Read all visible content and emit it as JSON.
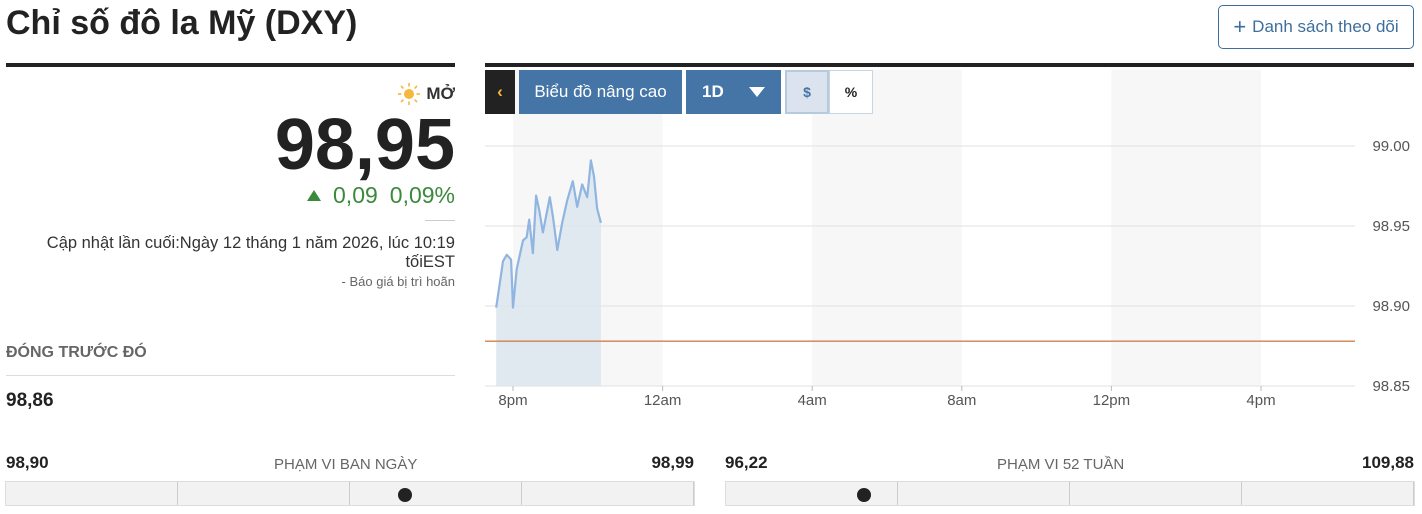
{
  "header": {
    "title": "Chỉ số đô la Mỹ (DXY)",
    "watchlist_label": "Danh sách theo dõi",
    "watchlist_icon": "plus-icon"
  },
  "quote": {
    "status": "MỞ",
    "status_icon": "sun-icon",
    "price": "98,95",
    "change": "0,09",
    "change_pct": "0,09%",
    "change_direction": "up",
    "updated": "Cập nhật lần cuối:Ngày 12 tháng 1 năm 2026, lúc 10:19 tốiEST",
    "delayed": "-  Báo giá bị trì hoãn",
    "prev_close_label": "ĐÓNG TRƯỚC ĐÓ",
    "prev_close": "98,86",
    "colors": {
      "up": "#3b8a3b",
      "accent": "#4475a6"
    }
  },
  "toolbar": {
    "back_icon": "chevron-left-icon",
    "advanced_label": "Biểu đồ nâng cao",
    "period": "1D",
    "usd_label": "$",
    "pct_label": "%",
    "selected": "$"
  },
  "chart_data": {
    "type": "area",
    "x_ticks": [
      "8pm",
      "12am",
      "4am",
      "8am",
      "12pm",
      "4pm"
    ],
    "y_ticks": [
      "99.00",
      "98.95",
      "98.90",
      "98.85"
    ],
    "ylim": [
      98.85,
      99.0
    ],
    "grid": true,
    "reference_line": 98.878,
    "colors": {
      "line": "#8fb5e0",
      "fill": "#dde5ee",
      "reference": "#d08050"
    },
    "points": [
      [
        "19:33",
        98.899
      ],
      [
        "19:44",
        98.928
      ],
      [
        "19:50",
        98.932
      ],
      [
        "19:57",
        98.929
      ],
      [
        "20:00",
        98.899
      ],
      [
        "20:06",
        98.923
      ],
      [
        "20:16",
        98.941
      ],
      [
        "20:22",
        98.943
      ],
      [
        "20:26",
        98.954
      ],
      [
        "20:32",
        98.933
      ],
      [
        "20:37",
        98.969
      ],
      [
        "20:42",
        98.96
      ],
      [
        "20:48",
        98.946
      ],
      [
        "20:55",
        98.96
      ],
      [
        "20:59",
        98.968
      ],
      [
        "21:04",
        98.956
      ],
      [
        "21:11",
        98.935
      ],
      [
        "21:19",
        98.952
      ],
      [
        "21:27",
        98.966
      ],
      [
        "21:36",
        98.978
      ],
      [
        "21:43",
        98.962
      ],
      [
        "21:51",
        98.976
      ],
      [
        "21:59",
        98.968
      ],
      [
        "22:05",
        98.991
      ],
      [
        "22:10",
        98.981
      ],
      [
        "22:15",
        98.961
      ],
      [
        "22:21",
        98.952
      ]
    ]
  },
  "ranges": {
    "day": {
      "label": "PHẠM VI BAN NGÀY",
      "low": "98,90",
      "high": "98,99",
      "position": 0.58
    },
    "week52": {
      "label": "PHẠM VI 52 TUẦN",
      "low": "96,22",
      "high": "109,88",
      "position": 0.2
    }
  }
}
